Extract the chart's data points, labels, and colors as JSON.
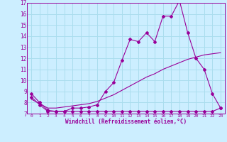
{
  "xlabel": "Windchill (Refroidissement éolien,°C)",
  "background_color": "#cceeff",
  "grid_color": "#aaddee",
  "line_color": "#990099",
  "xlim": [
    -0.5,
    23.5
  ],
  "ylim": [
    7,
    17
  ],
  "yticks": [
    7,
    8,
    9,
    10,
    11,
    12,
    13,
    14,
    15,
    16,
    17
  ],
  "xticks": [
    0,
    1,
    2,
    3,
    4,
    5,
    6,
    7,
    8,
    9,
    10,
    11,
    12,
    13,
    14,
    15,
    16,
    17,
    18,
    19,
    20,
    21,
    22,
    23
  ],
  "series1_x": [
    0,
    1,
    2,
    3,
    4,
    5,
    6,
    7,
    8,
    9,
    10,
    11,
    12,
    13,
    14,
    15,
    16,
    17,
    18,
    19,
    20,
    21,
    22,
    23
  ],
  "series1_y": [
    8.8,
    8.0,
    7.3,
    7.2,
    7.2,
    7.5,
    7.5,
    7.6,
    7.8,
    9.0,
    9.8,
    11.8,
    13.7,
    13.5,
    14.3,
    13.5,
    15.8,
    15.8,
    17.2,
    14.3,
    12.0,
    11.0,
    8.8,
    7.5
  ],
  "series2_x": [
    0,
    1,
    2,
    3,
    4,
    5,
    6,
    7,
    8,
    9,
    10,
    11,
    12,
    13,
    14,
    15,
    16,
    17,
    18,
    19,
    20,
    21,
    22,
    23
  ],
  "series2_y": [
    8.5,
    7.8,
    7.2,
    7.2,
    7.2,
    7.2,
    7.2,
    7.2,
    7.2,
    7.2,
    7.2,
    7.2,
    7.2,
    7.2,
    7.2,
    7.2,
    7.2,
    7.2,
    7.2,
    7.2,
    7.2,
    7.2,
    7.2,
    7.5
  ],
  "series3_x": [
    0,
    1,
    2,
    3,
    4,
    5,
    6,
    7,
    8,
    9,
    10,
    11,
    12,
    13,
    14,
    15,
    16,
    17,
    18,
    19,
    20,
    21,
    22,
    23
  ],
  "series3_y": [
    8.3,
    7.9,
    7.5,
    7.5,
    7.6,
    7.7,
    7.8,
    7.9,
    8.1,
    8.4,
    8.7,
    9.1,
    9.5,
    9.9,
    10.3,
    10.6,
    11.0,
    11.3,
    11.6,
    11.9,
    12.1,
    12.3,
    12.4,
    12.5
  ]
}
